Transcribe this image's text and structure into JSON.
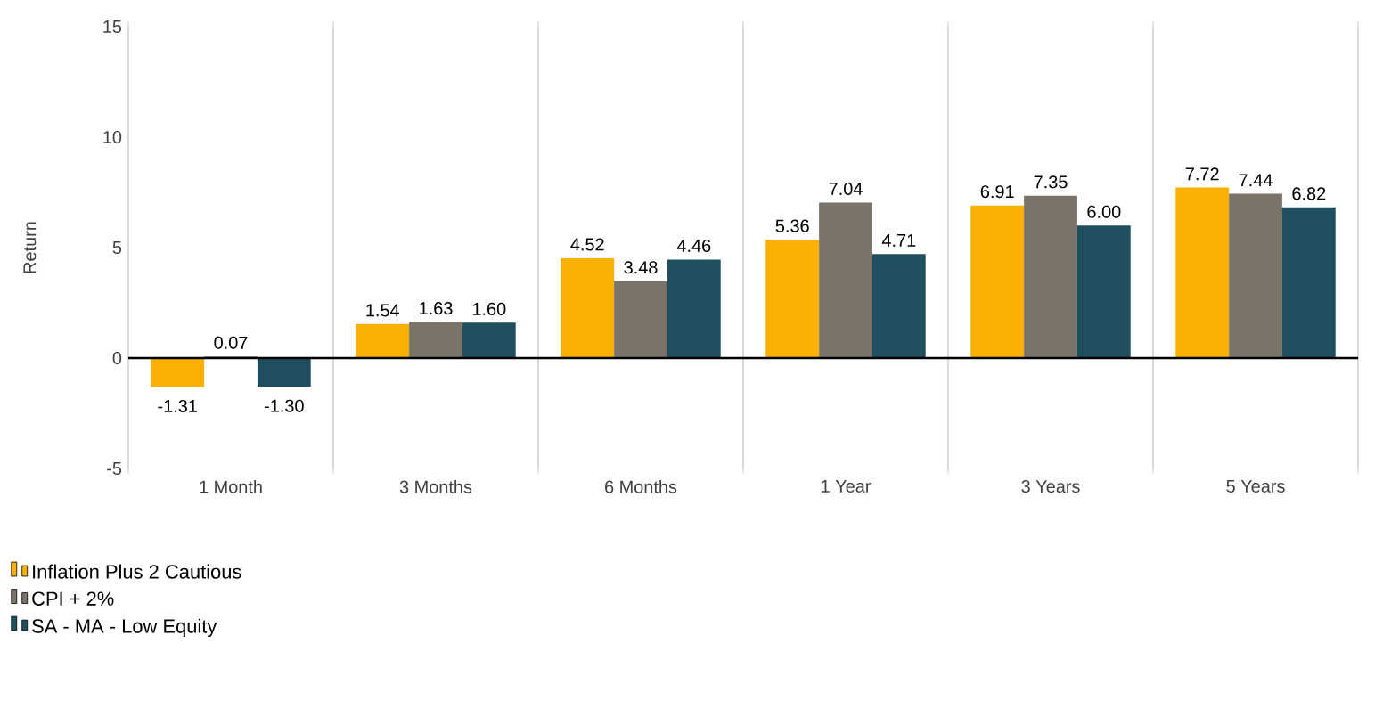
{
  "chart_data": {
    "type": "bar",
    "ylabel": "Return",
    "categories": [
      "1 Month",
      "3 Months",
      "6 Months",
      "1 Year",
      "3 Years",
      "5 Years"
    ],
    "series": [
      {
        "name": "Inflation Plus 2 Cautious",
        "color": "#f9b000",
        "values": [
          -1.31,
          1.54,
          4.52,
          5.36,
          6.91,
          7.72
        ],
        "value_labels": [
          "-1.31",
          "1.54",
          "4.52",
          "5.36",
          "6.91",
          "7.72"
        ]
      },
      {
        "name": "CPI + 2%",
        "color": "#7a736a",
        "values": [
          0.07,
          1.63,
          3.48,
          7.04,
          7.35,
          7.44
        ],
        "value_labels": [
          "0.07",
          "1.63",
          "3.48",
          "7.04",
          "7.35",
          "7.44"
        ]
      },
      {
        "name": "SA - MA - Low Equity",
        "color": "#1f4e5f",
        "values": [
          -1.3,
          1.6,
          4.46,
          4.71,
          6.0,
          6.82
        ],
        "value_labels": [
          "-1.30",
          "1.60",
          "4.46",
          "4.71",
          "6.00",
          "6.82"
        ]
      }
    ],
    "ylim": [
      -5,
      15
    ],
    "yticks": [
      -5,
      0,
      5,
      10,
      15
    ],
    "grid": "x",
    "legend": "bottom left"
  }
}
